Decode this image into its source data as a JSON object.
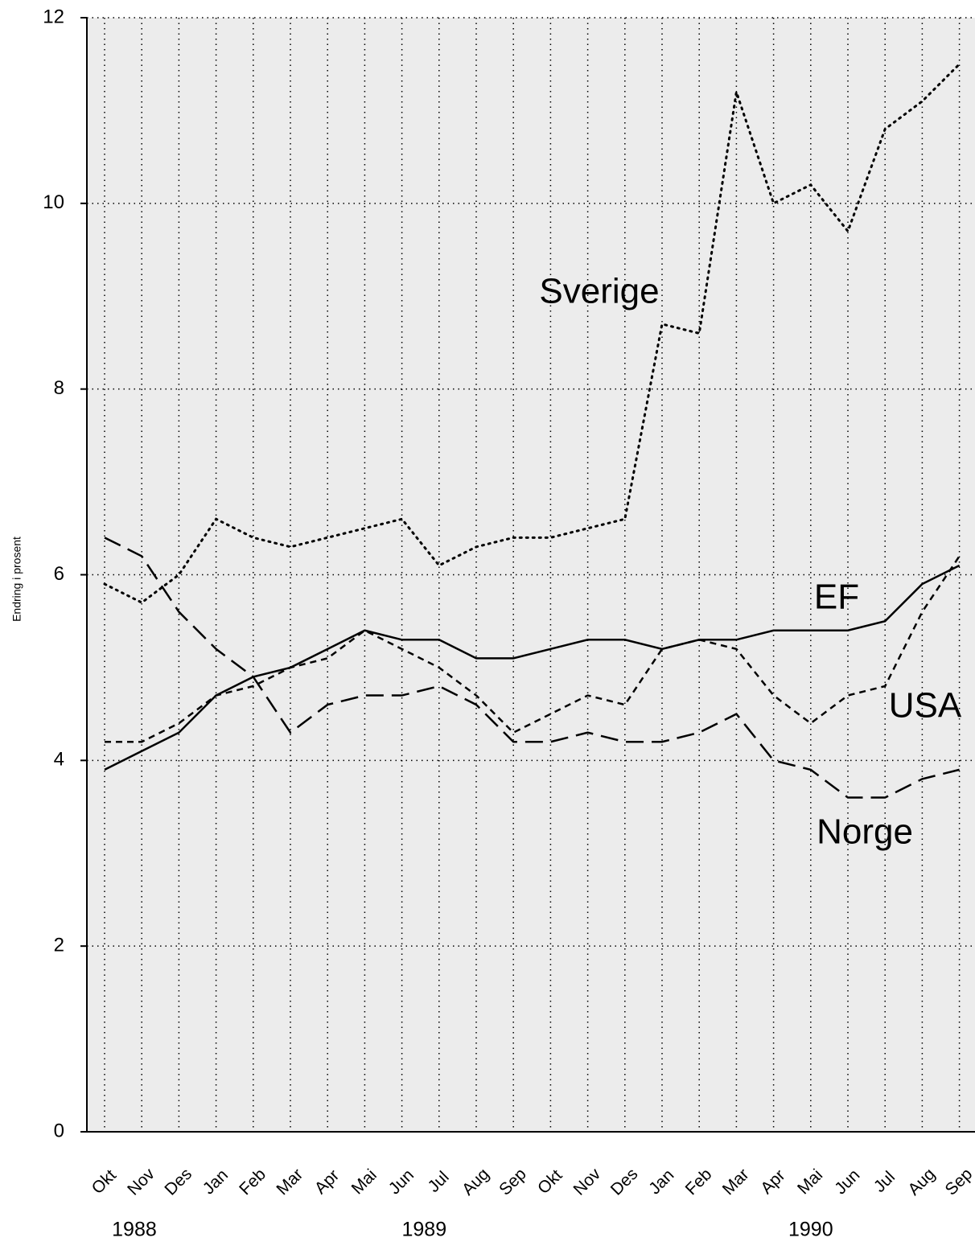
{
  "chart_data": {
    "type": "line",
    "y_label": "Endring i prosent",
    "categories": [
      "Okt",
      "Nov",
      "Des",
      "Jan",
      "Feb",
      "Mar",
      "Apr",
      "Mai",
      "Jun",
      "Jul",
      "Aug",
      "Sep",
      "Okt",
      "Nov",
      "Des",
      "Jan",
      "Feb",
      "Mar",
      "Apr",
      "Mai",
      "Jun",
      "Jul",
      "Aug",
      "Sep"
    ],
    "year_labels": [
      "1988",
      "1989",
      "1990"
    ],
    "series": [
      {
        "name": "Sverige",
        "color": "#000000",
        "style": "dotted",
        "values": [
          5.9,
          5.7,
          6.0,
          6.6,
          6.4,
          6.3,
          6.4,
          6.5,
          6.6,
          6.1,
          6.3,
          6.4,
          6.4,
          6.5,
          6.6,
          8.7,
          8.6,
          11.2,
          10.0,
          10.2,
          9.7,
          10.8,
          11.1,
          11.5
        ]
      },
      {
        "name": "EF",
        "color": "#000000",
        "style": "solid",
        "values": [
          3.9,
          4.1,
          4.3,
          4.7,
          4.9,
          5.0,
          5.2,
          5.4,
          5.3,
          5.3,
          5.1,
          5.1,
          5.2,
          5.3,
          5.3,
          5.2,
          5.3,
          5.3,
          5.4,
          5.4,
          5.4,
          5.5,
          5.9,
          6.1
        ]
      },
      {
        "name": "USA",
        "color": "#000000",
        "style": "short-dash",
        "values": [
          4.2,
          4.2,
          4.4,
          4.7,
          4.8,
          5.0,
          5.1,
          5.4,
          5.2,
          5.0,
          4.7,
          4.3,
          4.5,
          4.7,
          4.6,
          5.2,
          5.3,
          5.2,
          4.7,
          4.4,
          4.7,
          4.8,
          5.6,
          6.2
        ]
      },
      {
        "name": "Norge",
        "color": "#000000",
        "style": "long-dash",
        "values": [
          6.4,
          6.2,
          5.6,
          5.2,
          4.9,
          4.3,
          4.6,
          4.7,
          4.7,
          4.8,
          4.6,
          4.2,
          4.2,
          4.3,
          4.2,
          4.2,
          4.3,
          4.5,
          4.0,
          3.9,
          3.6,
          3.6,
          3.8,
          3.9
        ]
      }
    ],
    "ylim": [
      0,
      12
    ],
    "yticks": [
      0,
      2,
      4,
      6,
      8,
      10,
      12
    ],
    "grid": true
  }
}
